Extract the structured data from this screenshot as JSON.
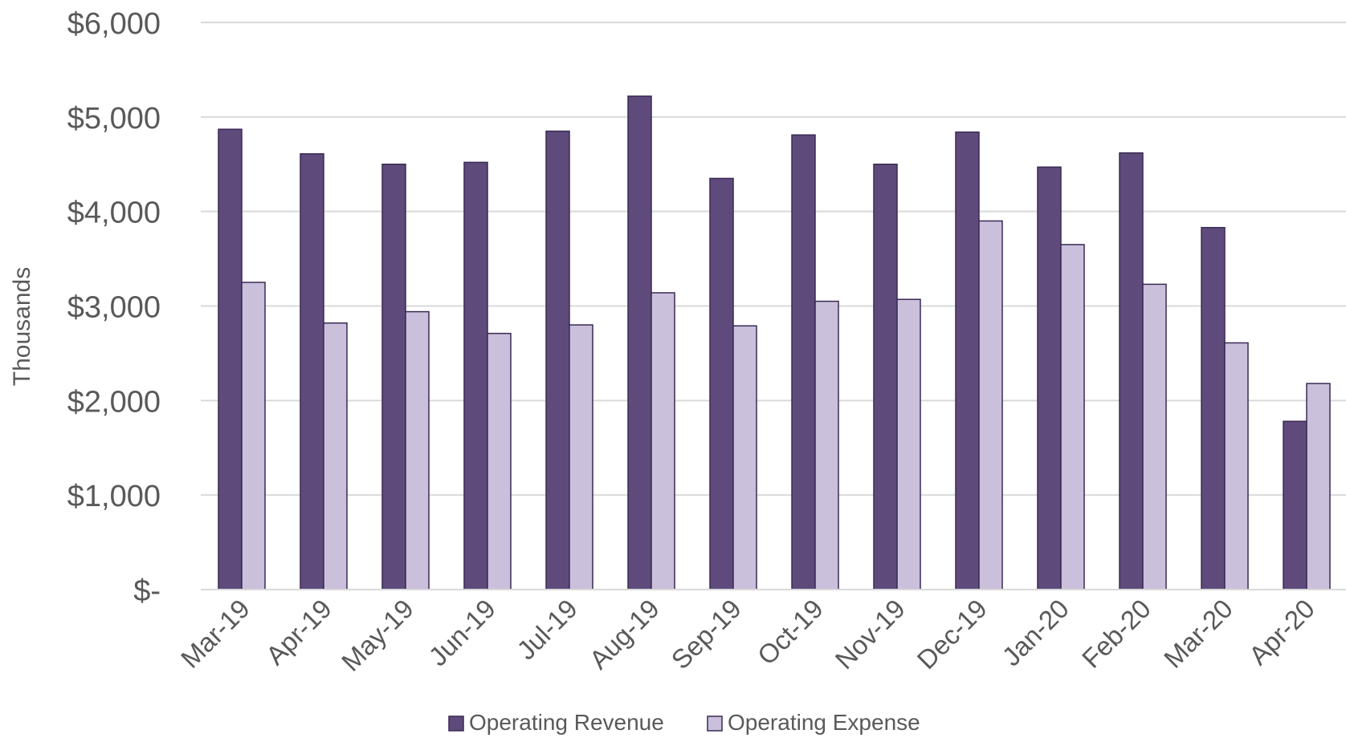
{
  "chart_data": {
    "type": "bar",
    "ylabel": "Thousands",
    "ylim": [
      0,
      6000
    ],
    "yticks": [
      {
        "value": 0,
        "label": "$-"
      },
      {
        "value": 1000,
        "label": "$1,000"
      },
      {
        "value": 2000,
        "label": "$2,000"
      },
      {
        "value": 3000,
        "label": "$3,000"
      },
      {
        "value": 4000,
        "label": "$4,000"
      },
      {
        "value": 5000,
        "label": "$5,000"
      },
      {
        "value": 6000,
        "label": "$6,000"
      }
    ],
    "grid": true,
    "legend_position": "bottom",
    "categories": [
      "Mar-19",
      "Apr-19",
      "May-19",
      "Jun-19",
      "Jul-19",
      "Aug-19",
      "Sep-19",
      "Oct-19",
      "Nov-19",
      "Dec-19",
      "Jan-20",
      "Feb-20",
      "Mar-20",
      "Apr-20"
    ],
    "series": [
      {
        "name": "Operating Revenue",
        "color": "#5e4b7c",
        "values": [
          4870,
          4610,
          4500,
          4520,
          4850,
          5220,
          4350,
          4810,
          4500,
          4840,
          4470,
          4620,
          3830,
          1780
        ]
      },
      {
        "name": "Operating Expense",
        "color": "#cbc0dc",
        "values": [
          3250,
          2820,
          2940,
          2710,
          2800,
          3140,
          2790,
          3050,
          3070,
          3900,
          3650,
          3230,
          2610,
          2180
        ]
      }
    ]
  }
}
